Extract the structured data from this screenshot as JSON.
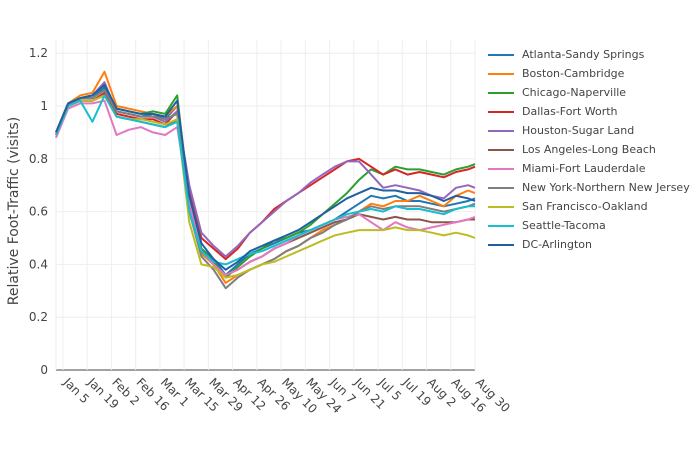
{
  "chart_data": {
    "type": "line",
    "title": "",
    "xlabel": "",
    "ylabel": "Relative Foot-Traffic (visits)",
    "ylim": [
      0,
      1.25
    ],
    "xlim": [
      "2020-01-01",
      "2020-08-30"
    ],
    "grid": true,
    "legend": "right",
    "x_ticks": [
      {
        "date": "2020-01-05",
        "label": "Jan  5"
      },
      {
        "date": "2020-01-19",
        "label": "Jan 19"
      },
      {
        "date": "2020-02-02",
        "label": "Feb  2"
      },
      {
        "date": "2020-02-16",
        "label": "Feb 16"
      },
      {
        "date": "2020-03-01",
        "label": "Mar  1"
      },
      {
        "date": "2020-03-15",
        "label": "Mar 15"
      },
      {
        "date": "2020-03-29",
        "label": "Mar 29"
      },
      {
        "date": "2020-04-12",
        "label": "Apr 12"
      },
      {
        "date": "2020-04-26",
        "label": "Apr 26"
      },
      {
        "date": "2020-05-10",
        "label": "May 10"
      },
      {
        "date": "2020-05-24",
        "label": "May 24"
      },
      {
        "date": "2020-06-07",
        "label": "Jun  7"
      },
      {
        "date": "2020-06-21",
        "label": "Jun 21"
      },
      {
        "date": "2020-07-05",
        "label": "Jul  5"
      },
      {
        "date": "2020-07-19",
        "label": "Jul 19"
      },
      {
        "date": "2020-08-02",
        "label": "Aug  2"
      },
      {
        "date": "2020-08-16",
        "label": "Aug 16"
      },
      {
        "date": "2020-08-30",
        "label": "Aug 30"
      }
    ],
    "y_ticks": [
      0,
      0.2,
      0.4,
      0.6,
      0.8,
      1,
      1.2
    ],
    "x_dates": [
      "2020-01-01",
      "2020-01-08",
      "2020-01-15",
      "2020-01-22",
      "2020-01-29",
      "2020-02-05",
      "2020-02-12",
      "2020-02-19",
      "2020-02-26",
      "2020-03-04",
      "2020-03-11",
      "2020-03-18",
      "2020-03-25",
      "2020-04-01",
      "2020-04-08",
      "2020-04-15",
      "2020-04-22",
      "2020-04-29",
      "2020-05-06",
      "2020-05-13",
      "2020-05-20",
      "2020-05-27",
      "2020-06-03",
      "2020-06-10",
      "2020-06-17",
      "2020-06-24",
      "2020-07-01",
      "2020-07-08",
      "2020-07-15",
      "2020-07-22",
      "2020-07-29",
      "2020-08-05",
      "2020-08-12",
      "2020-08-19",
      "2020-08-26",
      "2020-08-30"
    ],
    "series": [
      {
        "name": "Atlanta-Sandy Springs",
        "color": "#1f77b4",
        "values": [
          0.88,
          1.0,
          1.03,
          1.03,
          1.07,
          0.98,
          0.97,
          0.96,
          0.97,
          0.95,
          1.0,
          0.65,
          0.46,
          0.42,
          0.36,
          0.4,
          0.44,
          0.46,
          0.48,
          0.5,
          0.52,
          0.53,
          0.55,
          0.57,
          0.6,
          0.63,
          0.66,
          0.65,
          0.66,
          0.64,
          0.64,
          0.63,
          0.62,
          0.63,
          0.64,
          0.65
        ]
      },
      {
        "name": "Boston-Cambridge",
        "color": "#ff7f0e",
        "values": [
          0.9,
          1.01,
          1.04,
          1.05,
          1.13,
          1.0,
          0.99,
          0.98,
          0.97,
          0.96,
          1.0,
          0.62,
          0.44,
          0.4,
          0.33,
          0.36,
          0.38,
          0.4,
          0.42,
          0.45,
          0.47,
          0.5,
          0.53,
          0.55,
          0.57,
          0.6,
          0.63,
          0.62,
          0.64,
          0.64,
          0.66,
          0.64,
          0.62,
          0.66,
          0.68,
          0.67
        ]
      },
      {
        "name": "Chicago-Naperville",
        "color": "#2ca02c",
        "values": [
          0.9,
          1.0,
          1.03,
          1.04,
          1.08,
          0.99,
          0.98,
          0.97,
          0.98,
          0.97,
          1.04,
          0.64,
          0.46,
          0.41,
          0.35,
          0.39,
          0.43,
          0.46,
          0.49,
          0.5,
          0.52,
          0.55,
          0.59,
          0.63,
          0.67,
          0.72,
          0.76,
          0.74,
          0.77,
          0.76,
          0.76,
          0.75,
          0.74,
          0.76,
          0.77,
          0.78
        ]
      },
      {
        "name": "Dallas-Fort Worth",
        "color": "#d62728",
        "values": [
          0.89,
          1.0,
          1.02,
          1.02,
          1.05,
          0.97,
          0.96,
          0.95,
          0.95,
          0.93,
          0.98,
          0.68,
          0.5,
          0.46,
          0.42,
          0.46,
          0.52,
          0.56,
          0.61,
          0.64,
          0.67,
          0.7,
          0.73,
          0.76,
          0.79,
          0.8,
          0.77,
          0.74,
          0.76,
          0.74,
          0.75,
          0.74,
          0.73,
          0.75,
          0.76,
          0.77
        ]
      },
      {
        "name": "Houston-Sugar Land",
        "color": "#9467bd",
        "values": [
          0.9,
          1.01,
          1.03,
          1.04,
          1.09,
          0.98,
          0.97,
          0.96,
          0.96,
          0.94,
          0.98,
          0.7,
          0.52,
          0.47,
          0.43,
          0.47,
          0.52,
          0.56,
          0.6,
          0.64,
          0.67,
          0.71,
          0.74,
          0.77,
          0.79,
          0.79,
          0.74,
          0.69,
          0.7,
          0.69,
          0.68,
          0.66,
          0.65,
          0.69,
          0.7,
          0.69
        ]
      },
      {
        "name": "Los Angeles-Long Beach",
        "color": "#8c564b",
        "values": [
          0.89,
          1.0,
          1.02,
          1.02,
          1.04,
          0.96,
          0.95,
          0.94,
          0.93,
          0.92,
          0.95,
          0.62,
          0.45,
          0.4,
          0.36,
          0.38,
          0.41,
          0.43,
          0.46,
          0.48,
          0.5,
          0.52,
          0.54,
          0.56,
          0.57,
          0.59,
          0.58,
          0.57,
          0.58,
          0.57,
          0.57,
          0.56,
          0.56,
          0.56,
          0.57,
          0.57
        ]
      },
      {
        "name": "Miami-Fort Lauderdale",
        "color": "#e377c2",
        "values": [
          0.88,
          0.99,
          1.01,
          1.01,
          1.02,
          0.89,
          0.91,
          0.92,
          0.9,
          0.89,
          0.92,
          0.63,
          0.45,
          0.4,
          0.36,
          0.38,
          0.41,
          0.43,
          0.46,
          0.48,
          0.51,
          0.53,
          0.55,
          0.57,
          0.58,
          0.59,
          0.56,
          0.53,
          0.56,
          0.54,
          0.53,
          0.54,
          0.55,
          0.56,
          0.57,
          0.58
        ]
      },
      {
        "name": "New York-Northern New Jersey",
        "color": "#7f7f7f",
        "values": [
          0.89,
          1.0,
          1.03,
          1.03,
          1.06,
          0.98,
          0.97,
          0.96,
          0.96,
          0.95,
          0.97,
          0.6,
          0.43,
          0.38,
          0.31,
          0.35,
          0.38,
          0.4,
          0.42,
          0.45,
          0.47,
          0.5,
          0.52,
          0.55,
          0.57,
          0.6,
          0.62,
          0.61,
          0.62,
          0.62,
          0.62,
          0.61,
          0.6,
          0.61,
          0.62,
          0.63
        ]
      },
      {
        "name": "San Francisco-Oakland",
        "color": "#bcbd22",
        "values": [
          0.89,
          1.0,
          1.02,
          1.02,
          1.04,
          0.96,
          0.95,
          0.95,
          0.94,
          0.93,
          0.95,
          0.56,
          0.4,
          0.39,
          0.35,
          0.36,
          0.38,
          0.4,
          0.41,
          0.43,
          0.45,
          0.47,
          0.49,
          0.51,
          0.52,
          0.53,
          0.53,
          0.53,
          0.54,
          0.53,
          0.53,
          0.52,
          0.51,
          0.52,
          0.51,
          0.5
        ]
      },
      {
        "name": "Seattle-Tacoma",
        "color": "#17becf",
        "values": [
          0.89,
          1.0,
          1.02,
          0.94,
          1.04,
          0.96,
          0.95,
          0.94,
          0.93,
          0.92,
          0.94,
          0.6,
          0.45,
          0.41,
          0.4,
          0.42,
          0.44,
          0.45,
          0.47,
          0.49,
          0.51,
          0.53,
          0.55,
          0.57,
          0.59,
          0.6,
          0.61,
          0.6,
          0.62,
          0.61,
          0.61,
          0.6,
          0.59,
          0.61,
          0.62,
          0.62
        ]
      },
      {
        "name": "DC-Arlington",
        "color": "#1f60a0",
        "values": [
          0.9,
          1.01,
          1.03,
          1.04,
          1.08,
          0.99,
          0.98,
          0.97,
          0.97,
          0.96,
          1.02,
          0.66,
          0.48,
          0.42,
          0.38,
          0.41,
          0.45,
          0.47,
          0.49,
          0.51,
          0.53,
          0.56,
          0.59,
          0.62,
          0.65,
          0.67,
          0.69,
          0.68,
          0.68,
          0.67,
          0.67,
          0.66,
          0.64,
          0.66,
          0.65,
          0.64
        ]
      }
    ]
  }
}
